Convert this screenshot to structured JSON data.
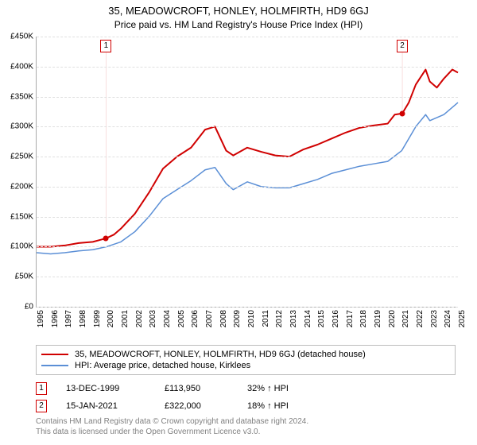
{
  "title_main": "35, MEADOWCROFT, HONLEY, HOLMFIRTH, HD9 6GJ",
  "title_sub": "Price paid vs. HM Land Registry's House Price Index (HPI)",
  "chart": {
    "type": "line",
    "background_color": "#ffffff",
    "grid_color": "#e0e0e0",
    "axis_color": "#aaaaaa",
    "ylim": [
      0,
      450000
    ],
    "ytick_step": 50000,
    "yticks": [
      "£0",
      "£50K",
      "£100K",
      "£150K",
      "£200K",
      "£250K",
      "£300K",
      "£350K",
      "£400K",
      "£450K"
    ],
    "xlim": [
      1995,
      2025
    ],
    "xticks": [
      1995,
      1996,
      1997,
      1998,
      1999,
      2000,
      2001,
      2002,
      2003,
      2004,
      2005,
      2006,
      2007,
      2008,
      2009,
      2010,
      2011,
      2012,
      2013,
      2014,
      2015,
      2016,
      2017,
      2018,
      2019,
      2020,
      2021,
      2022,
      2023,
      2024,
      2025
    ],
    "series": [
      {
        "label": "35, MEADOWCROFT, HONLEY, HOLMFIRTH, HD9 6GJ (detached house)",
        "color": "#d00000",
        "width": 2,
        "points": [
          [
            1995,
            100000
          ],
          [
            1996,
            100000
          ],
          [
            1997,
            102000
          ],
          [
            1998,
            106000
          ],
          [
            1999,
            108000
          ],
          [
            1999.95,
            113950
          ],
          [
            2000.5,
            120000
          ],
          [
            2001,
            130000
          ],
          [
            2002,
            155000
          ],
          [
            2003,
            190000
          ],
          [
            2004,
            230000
          ],
          [
            2005,
            250000
          ],
          [
            2006,
            265000
          ],
          [
            2007,
            295000
          ],
          [
            2007.7,
            300000
          ],
          [
            2008.5,
            260000
          ],
          [
            2009,
            252000
          ],
          [
            2010,
            265000
          ],
          [
            2011,
            258000
          ],
          [
            2012,
            252000
          ],
          [
            2013,
            250000
          ],
          [
            2014,
            262000
          ],
          [
            2015,
            270000
          ],
          [
            2016,
            280000
          ],
          [
            2017,
            290000
          ],
          [
            2018,
            298000
          ],
          [
            2019,
            302000
          ],
          [
            2020,
            305000
          ],
          [
            2020.5,
            320000
          ],
          [
            2021.04,
            322000
          ],
          [
            2021.5,
            340000
          ],
          [
            2022,
            370000
          ],
          [
            2022.7,
            395000
          ],
          [
            2023,
            375000
          ],
          [
            2023.5,
            365000
          ],
          [
            2024,
            380000
          ],
          [
            2024.6,
            395000
          ],
          [
            2025,
            390000
          ]
        ]
      },
      {
        "label": "HPI: Average price, detached house, Kirklees",
        "color": "#5b8fd6",
        "width": 1.5,
        "points": [
          [
            1995,
            90000
          ],
          [
            1996,
            88000
          ],
          [
            1997,
            90000
          ],
          [
            1998,
            93000
          ],
          [
            1999,
            95000
          ],
          [
            2000,
            100000
          ],
          [
            2001,
            108000
          ],
          [
            2002,
            125000
          ],
          [
            2003,
            150000
          ],
          [
            2004,
            180000
          ],
          [
            2005,
            195000
          ],
          [
            2006,
            210000
          ],
          [
            2007,
            228000
          ],
          [
            2007.7,
            232000
          ],
          [
            2008.5,
            205000
          ],
          [
            2009,
            195000
          ],
          [
            2010,
            208000
          ],
          [
            2011,
            200000
          ],
          [
            2012,
            198000
          ],
          [
            2013,
            198000
          ],
          [
            2014,
            205000
          ],
          [
            2015,
            212000
          ],
          [
            2016,
            222000
          ],
          [
            2017,
            228000
          ],
          [
            2018,
            234000
          ],
          [
            2019,
            238000
          ],
          [
            2020,
            242000
          ],
          [
            2021,
            260000
          ],
          [
            2022,
            300000
          ],
          [
            2022.7,
            320000
          ],
          [
            2023,
            310000
          ],
          [
            2024,
            320000
          ],
          [
            2025,
            340000
          ]
        ]
      }
    ],
    "markers": [
      {
        "n": "1",
        "x": 1999.95,
        "y": 113950
      },
      {
        "n": "2",
        "x": 2021.04,
        "y": 322000
      }
    ]
  },
  "legend": {
    "border_color": "#bdbdbd"
  },
  "sales": [
    {
      "n": "1",
      "date": "13-DEC-1999",
      "price": "£113,950",
      "pct": "32% ↑ HPI"
    },
    {
      "n": "2",
      "date": "15-JAN-2021",
      "price": "£322,000",
      "pct": "18% ↑ HPI"
    }
  ],
  "footer": {
    "line1": "Contains HM Land Registry data © Crown copyright and database right 2024.",
    "line2": "This data is licensed under the Open Government Licence v3.0."
  },
  "fonts": {
    "tick": 10,
    "title": 13,
    "sub": 12,
    "legend": 11
  }
}
